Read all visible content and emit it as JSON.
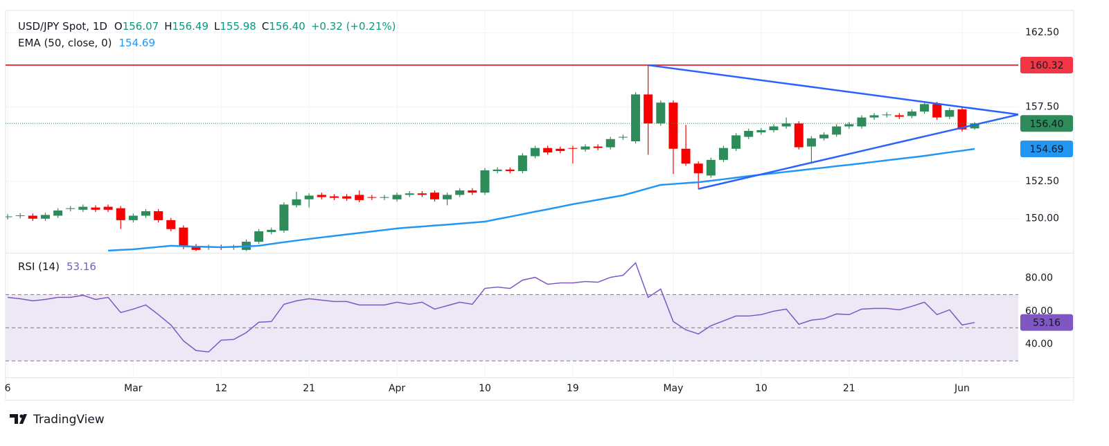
{
  "chart_data": [
    {
      "type": "candlestick",
      "legend": {
        "symbol": "USD/JPY Spot, 1D",
        "fields": [
          [
            "O",
            "156.07"
          ],
          [
            "H",
            "156.49"
          ],
          [
            "L",
            "155.98"
          ],
          [
            "C",
            "156.40"
          ]
        ],
        "change": "+0.32 (+0.21%)"
      },
      "categories": [
        "6",
        null,
        null,
        null,
        null,
        null,
        null,
        null,
        null,
        null,
        "Mar",
        null,
        null,
        null,
        null,
        null,
        null,
        "12",
        null,
        null,
        null,
        null,
        null,
        null,
        "21",
        null,
        null,
        null,
        null,
        null,
        null,
        "Apr",
        null,
        null,
        null,
        null,
        null,
        null,
        "10",
        null,
        null,
        null,
        null,
        null,
        null,
        "19",
        null,
        null,
        null,
        null,
        null,
        null,
        null,
        "May",
        null,
        null,
        null,
        null,
        null,
        null,
        "10",
        null,
        null,
        null,
        null,
        null,
        null,
        "21",
        null,
        null,
        null,
        null,
        null,
        null,
        null,
        null,
        "Jun",
        null
      ],
      "open": [
        150.1,
        150.18,
        150.2,
        150.0,
        150.2,
        150.65,
        150.6,
        150.75,
        150.8,
        150.7,
        149.9,
        150.2,
        150.5,
        149.9,
        149.4,
        148.15,
        148.05,
        148.1,
        148.05,
        147.9,
        148.45,
        149.1,
        149.2,
        150.9,
        151.3,
        151.6,
        151.5,
        151.5,
        151.6,
        151.45,
        151.4,
        151.3,
        151.6,
        151.7,
        151.75,
        151.3,
        151.6,
        151.9,
        151.75,
        153.2,
        153.3,
        153.2,
        154.2,
        154.75,
        154.7,
        154.75,
        154.65,
        154.85,
        154.8,
        155.45,
        155.2,
        158.35,
        156.4,
        157.8,
        154.7,
        153.7,
        152.9,
        153.95,
        154.7,
        155.5,
        155.8,
        155.95,
        156.2,
        156.4,
        154.85,
        155.4,
        155.65,
        156.2,
        156.2,
        156.8,
        156.95,
        156.95,
        156.9,
        157.2,
        157.7,
        156.85,
        157.35,
        156.07
      ],
      "high": [
        150.3,
        150.37,
        150.35,
        150.4,
        150.7,
        150.85,
        150.95,
        150.9,
        150.95,
        150.85,
        150.35,
        150.65,
        150.65,
        150.05,
        149.55,
        148.3,
        148.25,
        148.25,
        148.25,
        148.6,
        149.3,
        149.4,
        151.1,
        151.8,
        151.7,
        151.75,
        151.65,
        151.65,
        151.9,
        151.6,
        151.6,
        151.75,
        151.85,
        151.85,
        151.9,
        151.75,
        152.05,
        152.05,
        153.4,
        153.45,
        153.45,
        154.4,
        154.9,
        154.9,
        154.85,
        154.9,
        155.0,
        155.0,
        155.5,
        155.65,
        158.5,
        160.32,
        157.95,
        157.95,
        156.3,
        153.85,
        154.1,
        154.9,
        155.75,
        156.05,
        156.1,
        156.35,
        156.8,
        156.55,
        155.55,
        155.8,
        156.35,
        156.5,
        156.95,
        157.1,
        157.15,
        157.1,
        157.35,
        157.85,
        157.85,
        157.45,
        157.5,
        156.49
      ],
      "low": [
        149.95,
        150.03,
        149.85,
        149.85,
        150.05,
        150.5,
        150.45,
        150.45,
        150.45,
        149.3,
        149.75,
        150.05,
        149.75,
        149.15,
        147.95,
        147.82,
        147.9,
        147.9,
        147.9,
        147.82,
        148.3,
        148.95,
        149.05,
        150.75,
        150.75,
        151.3,
        151.25,
        151.2,
        151.1,
        151.25,
        151.25,
        151.15,
        151.45,
        151.45,
        151.15,
        150.9,
        151.45,
        151.6,
        151.6,
        153.05,
        153.05,
        153.05,
        154.05,
        154.3,
        154.4,
        153.7,
        154.5,
        154.6,
        154.65,
        155.3,
        155.05,
        154.3,
        156.25,
        153.0,
        153.55,
        152.0,
        152.75,
        153.8,
        154.55,
        155.35,
        155.65,
        155.8,
        156.05,
        154.65,
        153.7,
        155.25,
        155.5,
        156.05,
        156.05,
        156.65,
        156.8,
        156.7,
        156.75,
        157.05,
        156.65,
        156.7,
        155.85,
        155.98
      ],
      "close": [
        150.15,
        150.22,
        150.0,
        150.25,
        150.55,
        150.7,
        150.8,
        150.6,
        150.6,
        149.9,
        150.2,
        150.5,
        149.9,
        149.3,
        148.2,
        147.9,
        148.1,
        148.05,
        148.1,
        148.45,
        149.15,
        149.25,
        150.95,
        151.3,
        151.55,
        151.45,
        151.4,
        151.35,
        151.25,
        151.4,
        151.45,
        151.6,
        151.7,
        151.6,
        151.3,
        151.6,
        151.9,
        151.75,
        153.25,
        153.3,
        153.2,
        154.25,
        154.75,
        154.45,
        154.55,
        154.7,
        154.85,
        154.75,
        155.35,
        155.5,
        158.35,
        156.4,
        157.8,
        154.7,
        153.7,
        153.05,
        153.95,
        154.75,
        155.6,
        155.9,
        155.95,
        156.2,
        156.4,
        154.8,
        155.4,
        155.65,
        156.2,
        156.35,
        156.8,
        156.95,
        157.0,
        156.85,
        157.2,
        157.7,
        156.8,
        157.3,
        156.0,
        156.4
      ],
      "up_color": "#2e8b5a",
      "down_color": "#f70000",
      "ylim": [
        147.8,
        164.0
      ],
      "yticks": [
        {
          "value": 150,
          "label": "150.00"
        },
        {
          "value": 152.5,
          "label": "152.50"
        },
        {
          "value": 157.5,
          "label": "157.50"
        },
        {
          "value": 162.5,
          "label": "162.50"
        }
      ],
      "grid": true,
      "overlays": [
        {
          "name": "EMA (50, close, 0)",
          "color": "#2196f3",
          "values": [
            null,
            null,
            null,
            null,
            null,
            null,
            null,
            null,
            147.85,
            147.9,
            147.94,
            148.02,
            148.1,
            148.18,
            148.15,
            148.12,
            148.1,
            148.08,
            148.11,
            148.14,
            148.18,
            148.3,
            148.42,
            148.53,
            148.64,
            148.74,
            148.84,
            148.94,
            149.04,
            149.14,
            149.24,
            149.34,
            149.41,
            149.47,
            149.54,
            149.6,
            149.67,
            149.73,
            149.8,
            149.97,
            150.13,
            150.3,
            150.47,
            150.63,
            150.8,
            150.97,
            151.12,
            151.27,
            151.42,
            151.57,
            151.8,
            152.04,
            152.27,
            152.33,
            152.39,
            152.45,
            152.55,
            152.65,
            152.76,
            152.86,
            152.96,
            153.05,
            153.15,
            153.24,
            153.34,
            153.43,
            153.53,
            153.62,
            153.72,
            153.82,
            153.92,
            154.02,
            154.12,
            154.22,
            154.34,
            154.46,
            154.57,
            154.69
          ]
        }
      ],
      "hline": {
        "value": 160.32,
        "color": "#f23645"
      },
      "trendlines": [
        {
          "color": "#2962ff",
          "start": 51,
          "end": 80.5,
          "values": [
            160.32,
            157.0
          ]
        },
        {
          "color": "#2962ff",
          "start": 55,
          "end": 80.5,
          "values": [
            152.0,
            157.0
          ]
        }
      ],
      "footer": "TradingView"
    },
    {
      "type": "line",
      "name": "RSI (14)",
      "color": "#7e57c2",
      "values": [
        68.33,
        67.5,
        66.25,
        67.08,
        68.33,
        68.33,
        69.58,
        67.08,
        68.33,
        59.17,
        61.25,
        63.75,
        57.92,
        51.67,
        42.08,
        36.25,
        35.42,
        42.5,
        42.92,
        47.08,
        53.33,
        53.75,
        64.17,
        66.25,
        67.5,
        66.67,
        65.83,
        65.83,
        63.75,
        63.75,
        63.75,
        65.42,
        64.17,
        65.42,
        61.25,
        63.33,
        65.42,
        64.17,
        73.75,
        74.58,
        73.75,
        78.75,
        80.42,
        76.25,
        77.08,
        77.08,
        77.92,
        77.5,
        80.42,
        81.67,
        89.17,
        68.33,
        73.33,
        53.75,
        48.75,
        46.25,
        51.25,
        54.17,
        57.08,
        57.08,
        57.92,
        60.0,
        61.25,
        52.08,
        54.58,
        55.42,
        58.33,
        57.92,
        61.25,
        61.67,
        61.67,
        60.83,
        62.92,
        65.42,
        57.92,
        60.83,
        51.67,
        53.16
      ],
      "ylim": [
        20,
        94
      ],
      "yticks": [
        {
          "value": 40,
          "label": "40.00"
        },
        {
          "value": 60,
          "label": "60.00"
        },
        {
          "value": 80,
          "label": "80.00"
        }
      ],
      "levels": [
        70,
        50,
        30
      ],
      "band_color": "#ede7f6"
    }
  ]
}
